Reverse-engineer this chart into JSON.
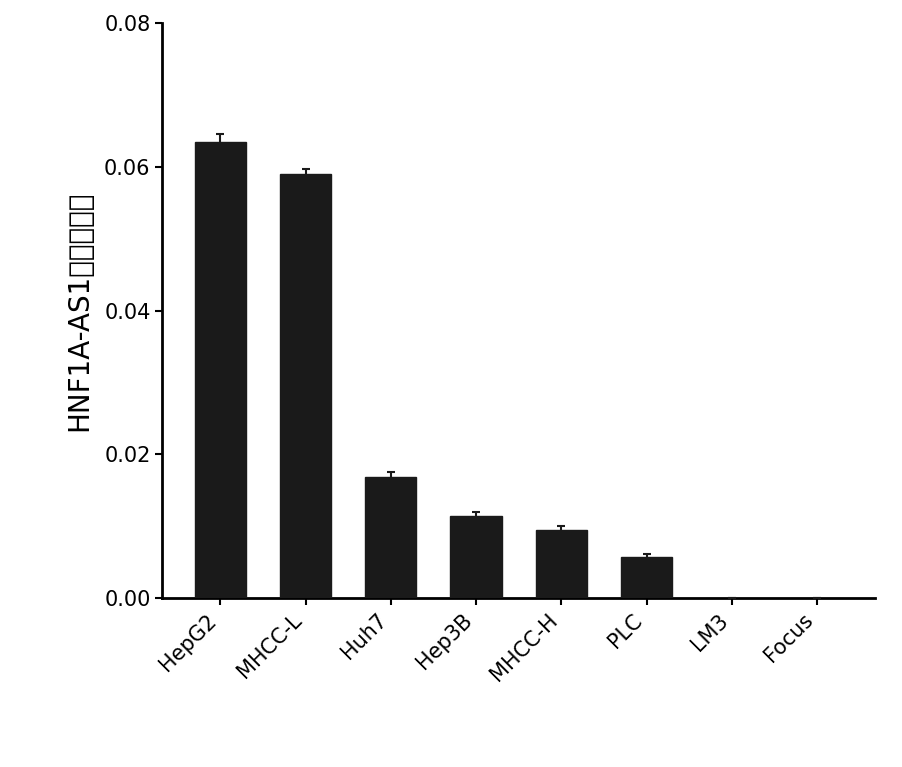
{
  "categories": [
    "HepG2",
    "MHCC-L",
    "Huh7",
    "Hep3B",
    "MHCC-H",
    "PLC",
    "LM3",
    "Focus"
  ],
  "values": [
    0.0635,
    0.059,
    0.0168,
    0.0115,
    0.0095,
    0.0058,
    8e-05,
    5e-05
  ],
  "errors": [
    0.001,
    0.0007,
    0.0007,
    0.0005,
    0.0005,
    0.0003,
    2e-05,
    2e-05
  ],
  "bar_color": "#1a1a1a",
  "error_color": "#1a1a1a",
  "ylabel": "HNF1A-AS1相对表达量",
  "ylim": [
    0,
    0.08
  ],
  "yticks": [
    0.0,
    0.02,
    0.04,
    0.06,
    0.08
  ],
  "background_color": "#ffffff",
  "bar_width": 0.6,
  "ylabel_fontsize": 20,
  "tick_fontsize": 15,
  "xtick_fontsize": 15
}
